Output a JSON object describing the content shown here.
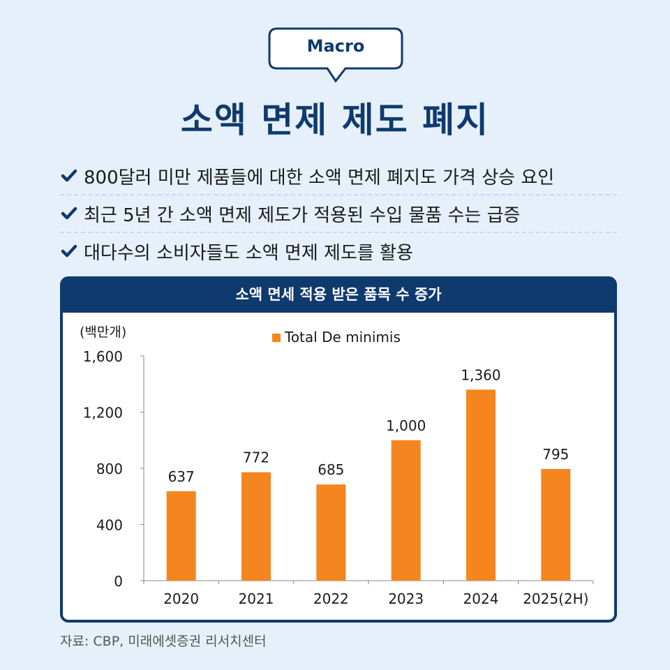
{
  "badge": {
    "label": "Macro"
  },
  "title": "소액 면제 제도 폐지",
  "bullets": [
    {
      "text": "800달러 미만 제품들에 대한 소액 면제 폐지도 가격 상승 요인"
    },
    {
      "text": "최근 5년 간 소액 면제 제도가 적용된 수입 물품 수는 급증"
    },
    {
      "text": "대다수의 소비자들도 소액 면제 제도를 활용"
    }
  ],
  "icons": {
    "bullet": "check-icon"
  },
  "colors": {
    "navy": "#0f3a6e",
    "bar": "#f4851f",
    "background": "#e5f0fa"
  },
  "chart_data": {
    "type": "bar",
    "title": "소액 면세 적용 받은 품목 수 증가",
    "unit_label": "(백만개)",
    "categories": [
      "2020",
      "2021",
      "2022",
      "2023",
      "2024",
      "2025(2H)"
    ],
    "series": [
      {
        "name": "Total De minimis",
        "values": [
          637,
          772,
          685,
          1000,
          1360,
          795
        ],
        "color": "#f4851f"
      }
    ],
    "data_labels": [
      "637",
      "772",
      "685",
      "1,000",
      "1,360",
      "795"
    ],
    "ylim": [
      0,
      1600
    ],
    "yticks": [
      0,
      400,
      800,
      1200,
      1600
    ],
    "ytick_labels": [
      "0",
      "400",
      "800",
      "1,200",
      "1,600"
    ],
    "legend_position": "top-center",
    "grid": false
  },
  "source": "자료: CBP, 미래에셋증권 리서치센터"
}
